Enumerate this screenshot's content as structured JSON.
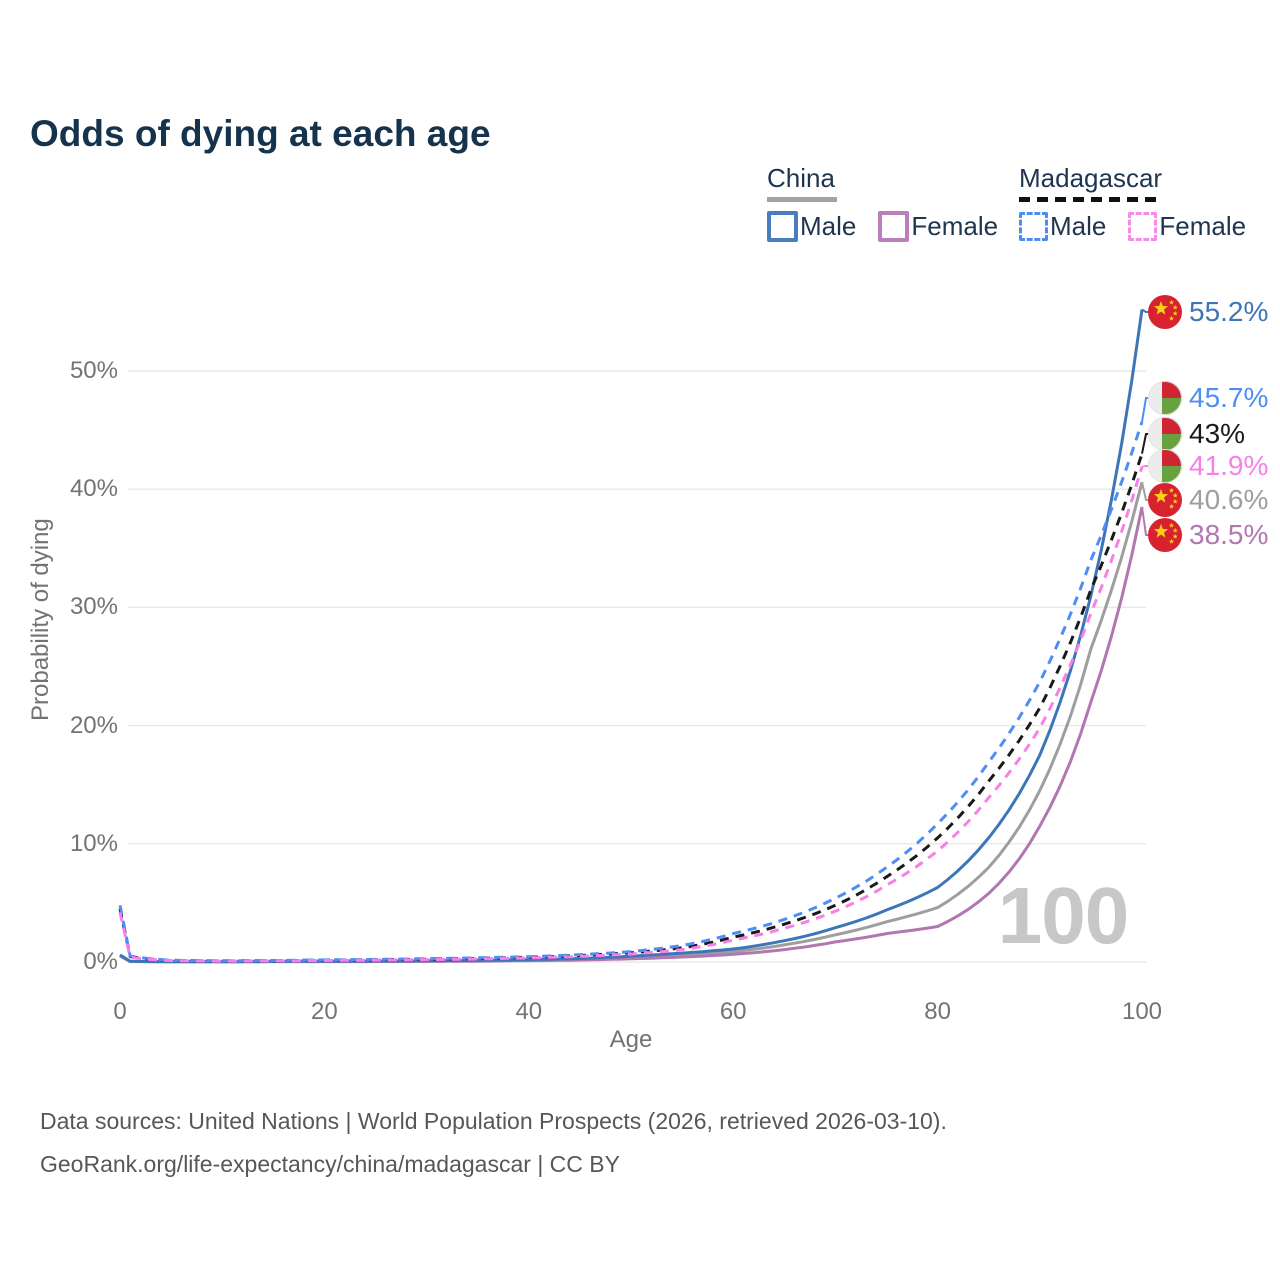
{
  "title": "Odds of dying at each age",
  "legend": {
    "china": {
      "label": "China",
      "male_label": "Male",
      "female_label": "Female"
    },
    "madagascar": {
      "label": "Madagascar",
      "male_label": "Male",
      "female_label": "Female"
    }
  },
  "watermark": "100",
  "footer": {
    "line1": "Data sources: United Nations | World Population Prospects (2026, retrieved 2026-03-10).",
    "line2": "GeoRank.org/life-expectancy/china/madagascar | CC BY"
  },
  "colors": {
    "title": "#16334e",
    "axis_text": "#737373",
    "gridline": "#e8e8e8",
    "watermark": "#c7c7c7",
    "china_male": "#3d76b8",
    "china_female": "#b077b0",
    "china_both": "#9e9e9e",
    "madagascar_male": "#4d8ef5",
    "madagascar_female": "#f97fe8",
    "madagascar_both": "#1a1a1a",
    "china_flag_red": "#d8222f",
    "china_flag_yellow": "#f7d118",
    "madagascar_flag_red": "#cf2533",
    "madagascar_flag_green": "#68a13f",
    "madagascar_flag_white": "#ececec"
  },
  "chart_data": {
    "type": "line",
    "title": "Odds of dying at each age",
    "xlabel": "Age",
    "ylabel": "Probability of dying",
    "xlim": [
      0,
      100
    ],
    "ylim_pct": [
      0,
      56
    ],
    "grid": "horizontal",
    "legend_position": "top-right",
    "x_ticks": [
      {
        "label": "0",
        "value": 0
      },
      {
        "label": "20",
        "value": 20
      },
      {
        "label": "40",
        "value": 40
      },
      {
        "label": "60",
        "value": 60
      },
      {
        "label": "80",
        "value": 80
      },
      {
        "label": "100",
        "value": 100
      }
    ],
    "y_ticks": [
      {
        "label": "0%",
        "value": 0
      },
      {
        "label": "10%",
        "value": 10
      },
      {
        "label": "20%",
        "value": 20
      },
      {
        "label": "30%",
        "value": 30
      },
      {
        "label": "40%",
        "value": 40
      },
      {
        "label": "50%",
        "value": 50
      }
    ],
    "ages": [
      0,
      1,
      5,
      10,
      15,
      20,
      25,
      30,
      35,
      40,
      45,
      50,
      55,
      60,
      65,
      70,
      75,
      80,
      85,
      90,
      95,
      100
    ],
    "series": [
      {
        "name": "China Both sexes",
        "country": "china",
        "sex": "both",
        "style": "solid",
        "color": "#9e9e9e",
        "end_label": "40.6%",
        "end_value": 40.6,
        "values_pct": [
          0.55,
          0.05,
          0.025,
          0.025,
          0.04,
          0.05,
          0.06,
          0.08,
          0.11,
          0.16,
          0.24,
          0.39,
          0.59,
          0.88,
          1.45,
          2.3,
          3.4,
          4.6,
          8.0,
          14.5,
          26.5,
          40.6
        ]
      },
      {
        "name": "China Female",
        "country": "china",
        "sex": "female",
        "style": "solid",
        "color": "#b077b0",
        "end_label": "38.5%",
        "end_value": 38.5,
        "values_pct": [
          0.5,
          0.04,
          0.02,
          0.02,
          0.03,
          0.03,
          0.04,
          0.05,
          0.07,
          0.11,
          0.17,
          0.27,
          0.42,
          0.65,
          1.05,
          1.7,
          2.4,
          3.0,
          5.8,
          11.5,
          22.0,
          38.5
        ]
      },
      {
        "name": "China Male",
        "country": "china",
        "sex": "male",
        "style": "solid",
        "color": "#3d76b8",
        "end_label": "55.2%",
        "end_value": 55.2,
        "values_pct": [
          0.6,
          0.06,
          0.03,
          0.03,
          0.05,
          0.07,
          0.08,
          0.1,
          0.14,
          0.2,
          0.3,
          0.5,
          0.75,
          1.1,
          1.8,
          2.9,
          4.4,
          6.3,
          10.5,
          17.5,
          31.0,
          55.2
        ]
      },
      {
        "name": "Madagascar Both sexes",
        "country": "madagascar",
        "sex": "both",
        "style": "dashed",
        "color": "#1a1a1a",
        "end_label": "43%",
        "end_value": 43.0,
        "values_pct": [
          4.5,
          0.45,
          0.13,
          0.09,
          0.11,
          0.15,
          0.19,
          0.24,
          0.3,
          0.4,
          0.55,
          0.78,
          1.2,
          2.1,
          3.2,
          4.8,
          7.2,
          10.5,
          15.3,
          21.5,
          31.5,
          43.0
        ]
      },
      {
        "name": "Madagascar Male",
        "country": "madagascar",
        "sex": "male",
        "style": "dashed",
        "color": "#4d8ef5",
        "end_label": "45.7%",
        "end_value": 45.7,
        "values_pct": [
          4.8,
          0.5,
          0.15,
          0.1,
          0.13,
          0.18,
          0.22,
          0.28,
          0.35,
          0.45,
          0.62,
          0.88,
          1.4,
          2.4,
          3.6,
          5.4,
          8.0,
          11.7,
          16.9,
          23.7,
          34.0,
          45.7
        ]
      },
      {
        "name": "Madagascar Female",
        "country": "madagascar",
        "sex": "female",
        "style": "dashed",
        "color": "#f97fe8",
        "end_label": "41.9%",
        "end_value": 41.9,
        "values_pct": [
          4.2,
          0.4,
          0.12,
          0.08,
          0.1,
          0.13,
          0.16,
          0.2,
          0.26,
          0.35,
          0.48,
          0.68,
          1.05,
          1.85,
          2.85,
          4.3,
          6.5,
          9.4,
          13.9,
          19.8,
          29.5,
          41.9
        ]
      }
    ]
  }
}
